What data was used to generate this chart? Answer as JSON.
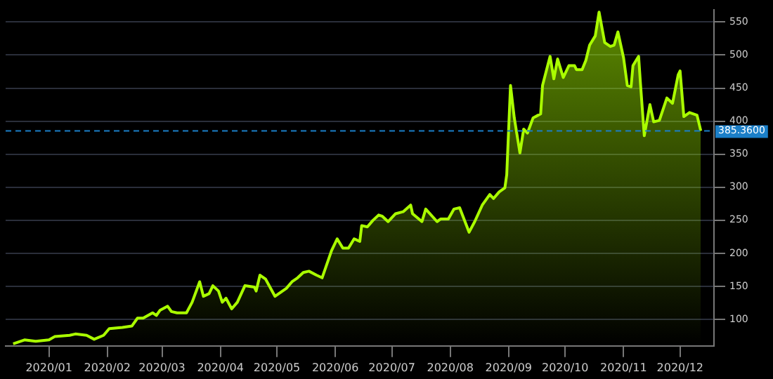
{
  "chart_data": {
    "type": "area",
    "x": [
      "2019-12-13",
      "2019-12-19",
      "2019-12-25",
      "2020-01-01",
      "2020-01-04",
      "2020-01-12",
      "2020-01-15",
      "2020-01-21",
      "2020-01-25",
      "2020-01-30",
      "2020-02-02",
      "2020-02-09",
      "2020-02-14",
      "2020-02-17",
      "2020-02-20",
      "2020-02-25",
      "2020-02-27",
      "2020-02-29",
      "2020-03-04",
      "2020-03-06",
      "2020-03-09",
      "2020-03-14",
      "2020-03-17",
      "2020-03-21",
      "2020-03-23",
      "2020-03-26",
      "2020-03-28",
      "2020-03-31",
      "2020-04-02",
      "2020-04-04",
      "2020-04-07",
      "2020-04-10",
      "2020-04-14",
      "2020-04-19",
      "2020-04-20",
      "2020-04-22",
      "2020-04-25",
      "2020-04-30",
      "2020-05-06",
      "2020-05-09",
      "2020-05-12",
      "2020-05-15",
      "2020-05-18",
      "2020-05-22",
      "2020-05-25",
      "2020-05-30",
      "2020-06-02",
      "2020-06-05",
      "2020-06-08",
      "2020-06-11",
      "2020-06-14",
      "2020-06-15",
      "2020-06-18",
      "2020-06-21",
      "2020-06-24",
      "2020-06-26",
      "2020-06-29",
      "2020-07-03",
      "2020-07-07",
      "2020-07-11",
      "2020-07-12",
      "2020-07-17",
      "2020-07-19",
      "2020-07-25",
      "2020-07-27",
      "2020-07-31",
      "2020-08-03",
      "2020-08-06",
      "2020-08-11",
      "2020-08-14",
      "2020-08-18",
      "2020-08-22",
      "2020-08-24",
      "2020-08-27",
      "2020-08-30",
      "2020-08-31",
      "2020-09-02",
      "2020-09-04",
      "2020-09-07",
      "2020-09-09",
      "2020-09-11",
      "2020-09-14",
      "2020-09-18",
      "2020-09-19",
      "2020-09-23",
      "2020-09-25",
      "2020-09-27",
      "2020-09-30",
      "2020-10-03",
      "2020-10-06",
      "2020-10-07",
      "2020-10-10",
      "2020-10-12",
      "2020-10-14",
      "2020-10-17",
      "2020-10-19",
      "2020-10-22",
      "2020-10-25",
      "2020-10-27",
      "2020-10-29",
      "2020-11-01",
      "2020-11-03",
      "2020-11-05",
      "2020-11-06",
      "2020-11-09",
      "2020-11-10",
      "2020-11-12",
      "2020-11-15",
      "2020-11-17",
      "2020-11-20",
      "2020-11-24",
      "2020-11-27",
      "2020-11-30",
      "2020-12-01",
      "2020-12-03",
      "2020-12-06",
      "2020-12-10",
      "2020-12-12"
    ],
    "series": [
      {
        "color": "#aaff00",
        "values": [
          63,
          69,
          67,
          69,
          74,
          76,
          78,
          76,
          70,
          76,
          86,
          88,
          90,
          102,
          102,
          110,
          106,
          114,
          120,
          112,
          110,
          110,
          126,
          157,
          135,
          139,
          151,
          143,
          126,
          132,
          116,
          126,
          151,
          149,
          143,
          167,
          161,
          135,
          147,
          157,
          163,
          171,
          173,
          167,
          163,
          204,
          222,
          208,
          208,
          222,
          218,
          242,
          240,
          250,
          258,
          256,
          248,
          260,
          263,
          273,
          260,
          248,
          267,
          248,
          252,
          252,
          267,
          269,
          232,
          248,
          273,
          289,
          283,
          293,
          299,
          319,
          454,
          405,
          352,
          388,
          382,
          405,
          411,
          454,
          498,
          464,
          494,
          466,
          484,
          484,
          478,
          478,
          492,
          515,
          529,
          565,
          519,
          513,
          515,
          535,
          496,
          454,
          452,
          484,
          498,
          456,
          378,
          425,
          399,
          401,
          435,
          427,
          470,
          476,
          407,
          413,
          409,
          385.36
        ]
      }
    ],
    "xlim": [
      "2019-12-09",
      "2020-12-19"
    ],
    "xticks": [
      {
        "value": "2020-01-01",
        "label": "2020/01"
      },
      {
        "value": "2020-02-01",
        "label": "2020/02"
      },
      {
        "value": "2020-03-01",
        "label": "2020/03"
      },
      {
        "value": "2020-04-01",
        "label": "2020/04"
      },
      {
        "value": "2020-05-01",
        "label": "2020/05"
      },
      {
        "value": "2020-06-01",
        "label": "2020/06"
      },
      {
        "value": "2020-07-01",
        "label": "2020/07"
      },
      {
        "value": "2020-08-01",
        "label": "2020/08"
      },
      {
        "value": "2020-09-01",
        "label": "2020/09"
      },
      {
        "value": "2020-10-01",
        "label": "2020/10"
      },
      {
        "value": "2020-11-01",
        "label": "2020/11"
      },
      {
        "value": "2020-12-01",
        "label": "2020/12"
      }
    ],
    "ylim": [
      60,
      568
    ],
    "yticks": [
      100,
      150,
      200,
      250,
      300,
      350,
      400,
      450,
      500,
      550
    ],
    "grid": "y",
    "ref_lines": [
      {
        "axis": "y",
        "value": 385.36,
        "label": "385.3600",
        "color": "#1b7fc8",
        "line_style": "dashed"
      }
    ]
  }
}
